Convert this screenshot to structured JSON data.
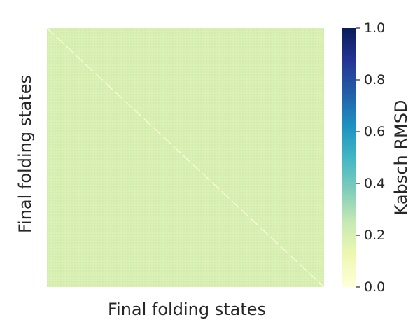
{
  "chart_data": {
    "type": "heatmap",
    "title": "",
    "xlabel": "Final folding states",
    "ylabel": "Final folding states",
    "x_ticks": [],
    "y_ticks": [],
    "value_fill": 0.19,
    "diagonal_value": 0.0,
    "colorbar": {
      "label": "Kabsch RMSD",
      "range": [
        0.0,
        1.0
      ],
      "ticks": [
        "0.0",
        "0.2",
        "0.4",
        "0.6",
        "0.8",
        "1.0"
      ],
      "colormap": "YlGnBu",
      "colors": [
        "#ffffd9",
        "#edf8b1",
        "#c7e9b4",
        "#7fcdbb",
        "#41b6c4",
        "#1d91c0",
        "#225ea8",
        "#253494",
        "#081d58"
      ]
    },
    "grid": false
  }
}
